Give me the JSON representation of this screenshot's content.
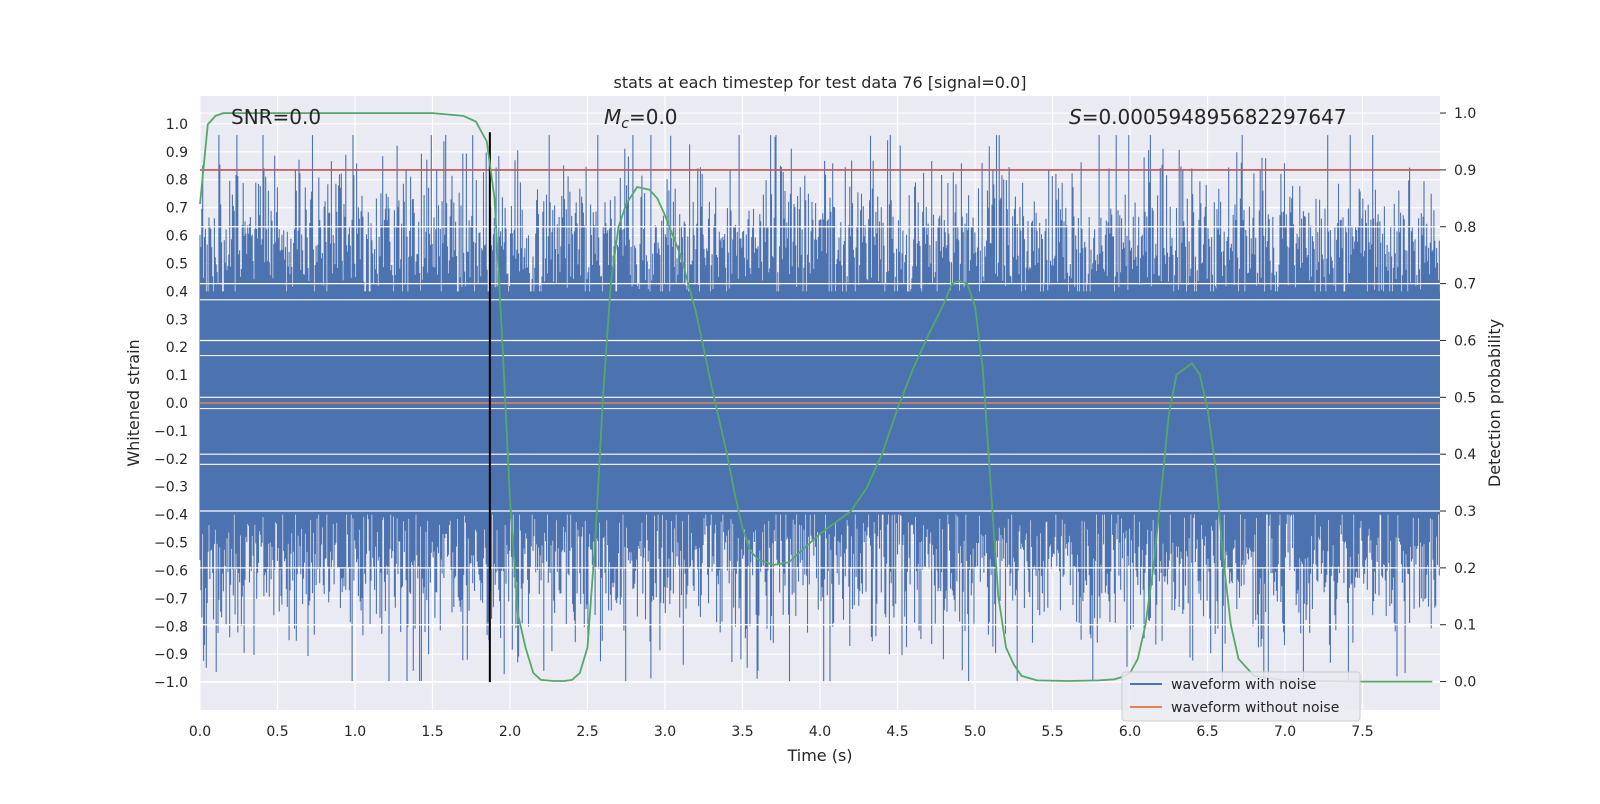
{
  "chart_data": {
    "type": "line",
    "title": "stats at each timestep for test data 76 [signal=0.0]",
    "xlabel": "Time (s)",
    "ylabel": "Whitened strain",
    "y2label": "Detection probability",
    "xlim": [
      0,
      8
    ],
    "ylim": [
      -1.1,
      1.1
    ],
    "y2lim": [
      -0.05,
      1.03
    ],
    "xticks": [
      "0.0",
      "0.5",
      "1.0",
      "1.5",
      "2.0",
      "2.5",
      "3.0",
      "3.5",
      "4.0",
      "4.5",
      "5.0",
      "5.5",
      "6.0",
      "6.5",
      "7.0",
      "7.5"
    ],
    "xtick_values": [
      0,
      0.5,
      1,
      1.5,
      2,
      2.5,
      3,
      3.5,
      4,
      4.5,
      5,
      5.5,
      6,
      6.5,
      7,
      7.5
    ],
    "yticks": [
      "1.0",
      "0.9",
      "0.8",
      "0.7",
      "0.6",
      "0.5",
      "0.4",
      "0.3",
      "0.2",
      "0.1",
      "0.0",
      "−0.1",
      "−0.2",
      "−0.3",
      "−0.4",
      "−0.5",
      "−0.6",
      "−0.7",
      "−0.8",
      "−0.9",
      "−1.0"
    ],
    "ytick_values": [
      1.0,
      0.9,
      0.8,
      0.7,
      0.6,
      0.5,
      0.4,
      0.3,
      0.2,
      0.1,
      0.0,
      -0.1,
      -0.2,
      -0.3,
      -0.4,
      -0.5,
      -0.6,
      -0.7,
      -0.8,
      -0.9,
      -1.0
    ],
    "y2ticks": [
      "1.0",
      "0.9",
      "0.8",
      "0.7",
      "0.6",
      "0.5",
      "0.4",
      "0.3",
      "0.2",
      "0.1",
      "0.0"
    ],
    "y2tick_values": [
      1.0,
      0.9,
      0.8,
      0.7,
      0.6,
      0.5,
      0.4,
      0.3,
      0.2,
      0.1,
      0.0
    ],
    "annotations": {
      "snr": "SNR=0.0",
      "mc_symbol": "M",
      "mc_sub": "c",
      "mc_value": "=0.0",
      "s_symbol": "S",
      "s_value": "=0.000594895682297647"
    },
    "threshold": {
      "value": 0.9,
      "axis": "y2",
      "color": "#c44e52"
    },
    "vertical_marker": {
      "x": 1.87,
      "color": "#000000"
    },
    "legend": {
      "position": "lower-right",
      "entries": [
        {
          "label": "waveform with noise",
          "color": "#4c72b0"
        },
        {
          "label": "waveform without noise",
          "color": "#dd8452"
        }
      ]
    },
    "series": [
      {
        "name": "waveform with noise",
        "color": "#4c72b0",
        "style": "dense noise",
        "band": [
          -0.4,
          0.4
        ],
        "peak_range": [
          -1.0,
          0.96
        ]
      },
      {
        "name": "waveform without noise",
        "color": "#dd8452",
        "x": [
          0,
          8
        ],
        "y": [
          0,
          0
        ]
      },
      {
        "name": "detection probability",
        "color": "#55a868",
        "axis": "y2",
        "x": [
          0.0,
          0.05,
          0.1,
          0.15,
          0.2,
          0.3,
          0.5,
          1.0,
          1.5,
          1.7,
          1.78,
          1.85,
          1.9,
          1.95,
          2.0,
          2.05,
          2.1,
          2.15,
          2.2,
          2.28,
          2.35,
          2.4,
          2.45,
          2.5,
          2.55,
          2.6,
          2.65,
          2.7,
          2.75,
          2.82,
          2.9,
          2.95,
          3.0,
          3.1,
          3.2,
          3.3,
          3.4,
          3.45,
          3.5,
          3.55,
          3.6,
          3.65,
          3.7,
          3.8,
          3.9,
          4.0,
          4.1,
          4.2,
          4.3,
          4.4,
          4.5,
          4.6,
          4.7,
          4.8,
          4.85,
          4.9,
          4.95,
          5.0,
          5.05,
          5.1,
          5.15,
          5.2,
          5.25,
          5.3,
          5.4,
          5.6,
          5.8,
          5.9,
          5.95,
          6.0,
          6.05,
          6.1,
          6.15,
          6.2,
          6.25,
          6.3,
          6.35,
          6.4,
          6.45,
          6.5,
          6.55,
          6.6,
          6.65,
          6.7,
          6.8,
          7.0,
          7.5,
          7.95
        ],
        "y": [
          0.84,
          0.98,
          0.995,
          1.0,
          1.0,
          1.0,
          1.0,
          1.0,
          1.0,
          0.995,
          0.985,
          0.95,
          0.85,
          0.6,
          0.32,
          0.12,
          0.06,
          0.015,
          0.003,
          0.001,
          0.001,
          0.003,
          0.015,
          0.06,
          0.25,
          0.5,
          0.7,
          0.8,
          0.84,
          0.87,
          0.865,
          0.85,
          0.82,
          0.75,
          0.65,
          0.52,
          0.4,
          0.33,
          0.27,
          0.23,
          0.215,
          0.21,
          0.205,
          0.21,
          0.235,
          0.26,
          0.28,
          0.3,
          0.34,
          0.4,
          0.48,
          0.55,
          0.61,
          0.665,
          0.7,
          0.705,
          0.7,
          0.66,
          0.55,
          0.35,
          0.15,
          0.06,
          0.03,
          0.01,
          0.002,
          0.001,
          0.002,
          0.004,
          0.008,
          0.015,
          0.04,
          0.1,
          0.2,
          0.33,
          0.47,
          0.54,
          0.55,
          0.56,
          0.54,
          0.48,
          0.38,
          0.22,
          0.1,
          0.04,
          0.01,
          0.002,
          0.0,
          0.0
        ]
      }
    ]
  }
}
